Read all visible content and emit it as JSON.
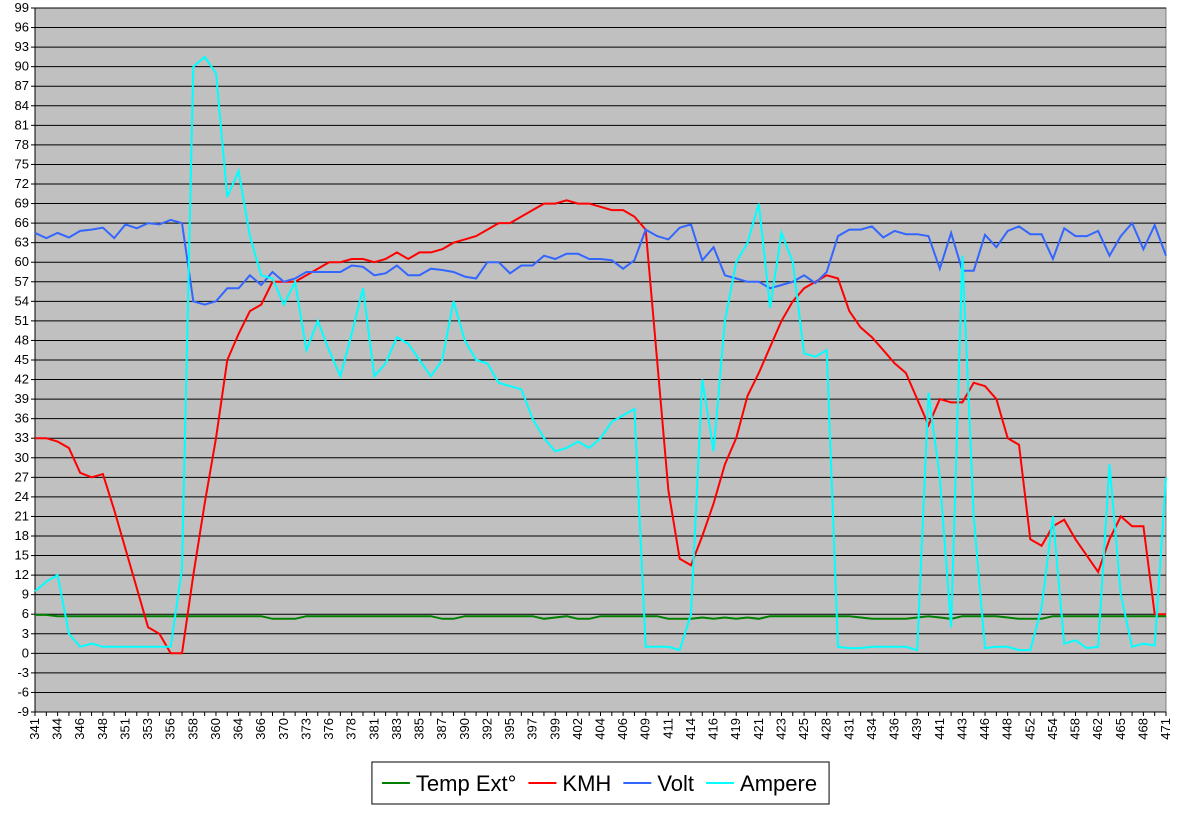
{
  "chart_data": {
    "type": "line",
    "categories": [
      "341",
      null,
      "344",
      null,
      "346",
      null,
      "348",
      null,
      "351",
      null,
      "353",
      null,
      "356",
      null,
      "358",
      null,
      "360",
      null,
      "364",
      null,
      "366",
      null,
      "370",
      null,
      "373",
      null,
      "376",
      null,
      "378",
      null,
      "381",
      null,
      "383",
      null,
      "385",
      null,
      "387",
      null,
      "390",
      null,
      "392",
      null,
      "395",
      null,
      "397",
      null,
      "399",
      null,
      "402",
      null,
      "404",
      null,
      "406",
      null,
      "409",
      null,
      "411",
      null,
      "414",
      null,
      "416",
      null,
      "419",
      null,
      "421",
      null,
      "423",
      null,
      "425",
      null,
      "428",
      null,
      "431",
      null,
      "434",
      null,
      "436",
      null,
      "439",
      null,
      "441",
      null,
      "443",
      null,
      "446",
      null,
      "448",
      null,
      "452",
      null,
      "454",
      null,
      "458",
      null,
      "462",
      null,
      "465",
      null,
      "468",
      null,
      "471"
    ],
    "series": [
      {
        "name": "Temp Ext°",
        "color": "#008000",
        "values": [
          5.9,
          5.9,
          5.7,
          5.7,
          5.7,
          5.7,
          5.7,
          5.7,
          5.7,
          5.7,
          5.7,
          5.7,
          5.7,
          5.7,
          5.7,
          5.7,
          5.7,
          5.7,
          5.7,
          5.7,
          5.7,
          5.3,
          5.3,
          5.3,
          5.7,
          5.7,
          5.7,
          5.7,
          5.7,
          5.7,
          5.7,
          5.7,
          5.7,
          5.7,
          5.7,
          5.7,
          5.3,
          5.3,
          5.7,
          5.7,
          5.7,
          5.7,
          5.7,
          5.7,
          5.7,
          5.3,
          5.5,
          5.7,
          5.3,
          5.3,
          5.7,
          5.7,
          5.7,
          5.7,
          5.7,
          5.7,
          5.3,
          5.3,
          5.3,
          5.5,
          5.3,
          5.5,
          5.3,
          5.5,
          5.3,
          5.7,
          5.7,
          5.7,
          5.7,
          5.7,
          5.7,
          5.7,
          5.7,
          5.5,
          5.3,
          5.3,
          5.3,
          5.3,
          5.5,
          5.7,
          5.5,
          5.3,
          5.7,
          5.7,
          5.7,
          5.7,
          5.5,
          5.3,
          5.3,
          5.3,
          5.7,
          5.7,
          5.7,
          5.7,
          5.7,
          5.7,
          5.7,
          5.7,
          5.7,
          5.7,
          5.7
        ]
      },
      {
        "name": "KMH",
        "color": "#ff0000",
        "values": [
          33,
          33,
          32.5,
          31.5,
          27.7,
          27,
          27.5,
          22,
          16,
          10,
          4,
          3,
          0,
          0,
          12,
          23,
          33,
          45,
          49,
          52.5,
          53.5,
          57,
          57,
          57,
          58,
          59,
          60,
          60,
          60.5,
          60.5,
          60,
          60.5,
          61.5,
          60.5,
          61.5,
          61.5,
          62,
          63,
          63.5,
          64,
          65,
          66,
          66,
          67,
          68,
          69,
          69,
          69.5,
          69,
          69,
          68.5,
          68,
          68,
          67,
          65,
          45,
          25,
          14.5,
          13.5,
          18,
          23,
          29,
          33,
          39.5,
          43,
          47,
          51,
          54,
          56,
          57,
          58,
          57.5,
          52.5,
          50,
          48.5,
          46.5,
          44.5,
          43,
          39,
          35,
          39,
          38.5,
          38.5,
          41.5,
          41,
          39,
          33,
          32,
          17.5,
          16.5,
          19.5,
          20.5,
          17.5,
          15,
          12.5,
          17.5,
          21,
          19.5,
          19.5,
          6,
          6
        ]
      },
      {
        "name": "Volt",
        "color": "#3366ff",
        "values": [
          64.5,
          63.7,
          64.5,
          63.8,
          64.8,
          65,
          65.3,
          63.7,
          65.8,
          65.2,
          66,
          65.8,
          66.5,
          66,
          54,
          53.5,
          54,
          56,
          56,
          58,
          56.5,
          58.5,
          57,
          57.5,
          58.5,
          58.5,
          58.5,
          58.5,
          59.5,
          59.3,
          58,
          58.3,
          59.5,
          58,
          58,
          59,
          58.8,
          58.5,
          57.8,
          57.5,
          60,
          60,
          58.3,
          59.5,
          59.5,
          61,
          60.5,
          61.3,
          61.3,
          60.5,
          60.5,
          60.3,
          59,
          60.3,
          65,
          64,
          63.5,
          65.3,
          65.8,
          60.3,
          62.3,
          58,
          57.5,
          57,
          57,
          56,
          56.5,
          57,
          58,
          56.8,
          58.5,
          64,
          65,
          65,
          65.5,
          63.8,
          64.8,
          64.3,
          64.3,
          64,
          59,
          64.5,
          58.7,
          58.7,
          64.2,
          62.3,
          64.8,
          65.5,
          64.3,
          64.3,
          60.5,
          65.2,
          64,
          64,
          64.8,
          61,
          64,
          66,
          62,
          65.7,
          61
        ]
      },
      {
        "name": "Ampere",
        "color": "#00ffff",
        "values": [
          9.5,
          11,
          12,
          3,
          1,
          1.5,
          1,
          1,
          1,
          1,
          1,
          1,
          1,
          13,
          90,
          91.5,
          89,
          70,
          74,
          64,
          58,
          57.5,
          53.5,
          57,
          46.5,
          51,
          46.5,
          42.5,
          49,
          56,
          42.5,
          44.5,
          48.5,
          47.5,
          45,
          42.5,
          45,
          54,
          48,
          45,
          44.5,
          41.5,
          41,
          40.5,
          36,
          33,
          31,
          31.5,
          32.5,
          31.5,
          33,
          35.5,
          36.5,
          37.5,
          1,
          1,
          1,
          0.5,
          6,
          42,
          31,
          51,
          60,
          63,
          69,
          53,
          64.5,
          60,
          46,
          45.5,
          46.5,
          1,
          0.8,
          0.8,
          1,
          1,
          1,
          1,
          0.5,
          40,
          27,
          4,
          61,
          21,
          0.8,
          1,
          1,
          0.5,
          0.5,
          7,
          21,
          1.5,
          2,
          0.8,
          1,
          29,
          9,
          1,
          1.5,
          1.2,
          27
        ]
      }
    ],
    "ylim": [
      -9,
      99
    ],
    "yticks": [
      -9,
      -6,
      -3,
      0,
      3,
      6,
      9,
      12,
      15,
      18,
      21,
      24,
      27,
      30,
      33,
      36,
      39,
      42,
      45,
      48,
      51,
      54,
      57,
      60,
      63,
      66,
      69,
      72,
      75,
      78,
      81,
      84,
      87,
      90,
      93,
      96,
      99
    ],
    "grid": true,
    "legend": "bottom",
    "background": "#c0c0c0"
  }
}
